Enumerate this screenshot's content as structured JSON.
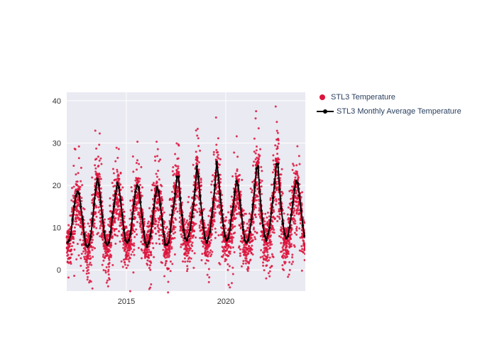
{
  "chart": {
    "type": "scatter+line",
    "background_color": "#ffffff",
    "plot_background_color": "#eaeaf2",
    "grid_color": "#ffffff",
    "grid_width": 1,
    "x": {
      "label_2015": "2015",
      "label_2020": "2020",
      "lim_start": 2012,
      "lim_end": 2024,
      "tick_2015_position": 0.25,
      "tick_2020_position": 0.667
    },
    "y": {
      "lim_min": -5,
      "lim_max": 42,
      "ticks": [
        0,
        10,
        20,
        30,
        40
      ],
      "tick_labels": [
        "0",
        "10",
        "20",
        "30",
        "40"
      ]
    },
    "series_scatter": {
      "label": "STL3 Temperature",
      "color": "#dc143c",
      "marker_size": 3,
      "opacity": 0.85
    },
    "series_line": {
      "label": "STL3 Monthly Average Temperature",
      "color": "#000000",
      "line_width": 1.8,
      "marker_size": 3.5,
      "marker_style": "circle",
      "monthly_avg": [
        6.5,
        7.0,
        8.5,
        12.0,
        15.0,
        17.5,
        18.5,
        18.0,
        15.0,
        12.0,
        8.5,
        6.0,
        5.5,
        6.0,
        8.0,
        11.5,
        15.5,
        19.0,
        21.5,
        20.0,
        16.0,
        12.5,
        9.0,
        6.5,
        6.0,
        6.5,
        9.0,
        12.5,
        15.0,
        18.0,
        20.5,
        19.5,
        16.5,
        13.0,
        9.5,
        7.0,
        6.5,
        7.0,
        8.5,
        12.0,
        15.5,
        18.5,
        20.0,
        19.5,
        16.0,
        12.5,
        9.0,
        6.5,
        5.5,
        6.5,
        8.0,
        11.0,
        14.5,
        17.5,
        19.5,
        18.5,
        15.5,
        12.0,
        8.5,
        6.0,
        6.0,
        6.5,
        9.0,
        13.0,
        15.0,
        18.0,
        22.0,
        22.0,
        17.0,
        13.0,
        9.5,
        7.5,
        7.0,
        8.0,
        9.5,
        12.5,
        15.5,
        19.0,
        24.5,
        22.0,
        17.5,
        13.5,
        10.0,
        7.5,
        6.5,
        7.5,
        9.0,
        12.5,
        16.0,
        20.0,
        25.5,
        22.5,
        18.0,
        14.0,
        10.5,
        8.0,
        7.0,
        7.5,
        9.5,
        13.0,
        15.0,
        18.5,
        21.0,
        20.0,
        16.5,
        13.0,
        9.5,
        7.0,
        6.5,
        7.0,
        9.0,
        12.0,
        15.5,
        19.5,
        24.0,
        24.5,
        18.5,
        14.0,
        10.5,
        8.0,
        7.0,
        8.5,
        10.0,
        13.5,
        17.0,
        20.5,
        25.0,
        25.0,
        19.0,
        14.5,
        11.0,
        8.5,
        7.5,
        8.0,
        10.0,
        13.0,
        16.0,
        19.0,
        21.0,
        20.5,
        17.5,
        14.0,
        10.5,
        8.0
      ]
    },
    "legend": {
      "position": "right",
      "font_size": 11,
      "text_color": "#2a3f5f"
    },
    "axis_font_size": 11,
    "axis_text_color": "#333333"
  }
}
